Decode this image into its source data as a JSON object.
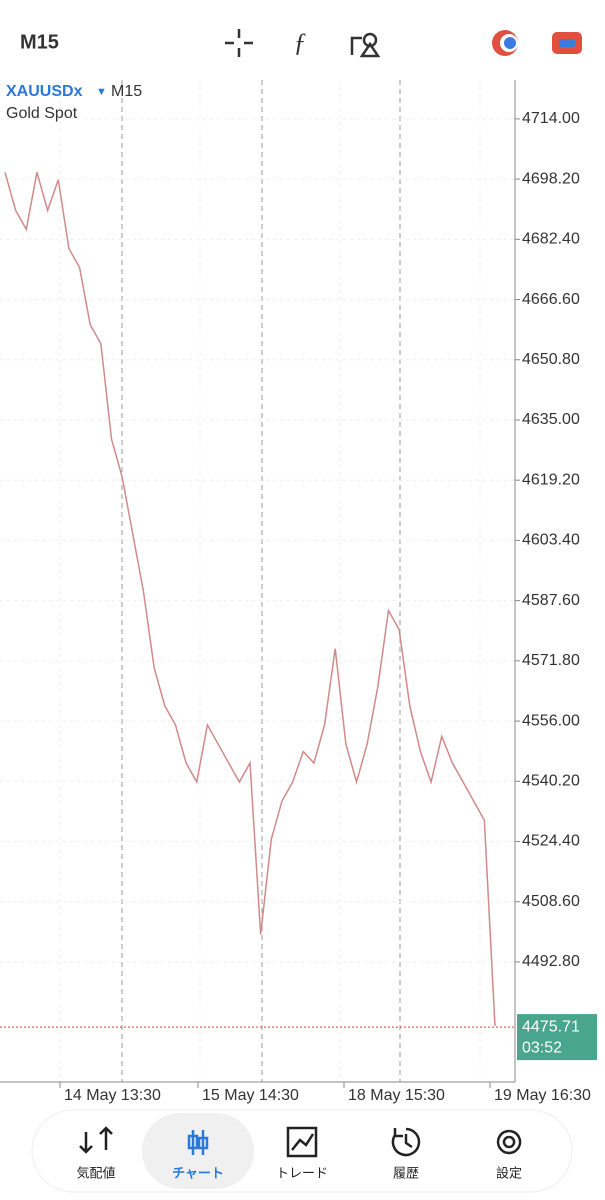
{
  "header": {
    "timeframe": "M15"
  },
  "chart_data": {
    "type": "line",
    "symbol": "XAUUSDx",
    "timeframe": "M15",
    "description": "Gold Spot",
    "values": [
      4700,
      4690,
      4685,
      4700,
      4690,
      4698,
      4680,
      4675,
      4660,
      4655,
      4630,
      4620,
      4605,
      4590,
      4570,
      4560,
      4555,
      4545,
      4540,
      4555,
      4550,
      4545,
      4540,
      4545,
      4500,
      4525,
      4535,
      4540,
      4548,
      4545,
      4555,
      4575,
      4550,
      4540,
      4550,
      4565,
      4585,
      4580,
      4560,
      4548,
      4540,
      4552,
      4545,
      4540,
      4535,
      4530,
      4476
    ],
    "color": "#d08a8a",
    "ylim": [
      4461.3,
      4724.2
    ],
    "yticks": [
      {
        "value": 4714,
        "label": "4714.00"
      },
      {
        "value": 4698.2,
        "label": "4698.20"
      },
      {
        "value": 4682.4,
        "label": "4682.40"
      },
      {
        "value": 4666.6,
        "label": "4666.60"
      },
      {
        "value": 4650.8,
        "label": "4650.80"
      },
      {
        "value": 4635,
        "label": "4635.00"
      },
      {
        "value": 4619.2,
        "label": "4619.20"
      },
      {
        "value": 4603.4,
        "label": "4603.40"
      },
      {
        "value": 4587.6,
        "label": "4587.60"
      },
      {
        "value": 4571.8,
        "label": "4571.80"
      },
      {
        "value": 4556,
        "label": "4556.00"
      },
      {
        "value": 4540.2,
        "label": "4540.20"
      },
      {
        "value": 4524.4,
        "label": "4524.40"
      },
      {
        "value": 4508.6,
        "label": "4508.60"
      },
      {
        "value": 4492.8,
        "label": "4492.80"
      }
    ],
    "x_labels": [
      "14 May 13:30",
      "15 May 14:30",
      "18 May 15:30",
      "19 May 16:30"
    ],
    "current_price": 4475.71,
    "timer": "03:52",
    "grid": true
  },
  "nav": {
    "items": [
      "気配値",
      "チャート",
      "トレード",
      "履歴",
      "設定"
    ],
    "active": 1
  }
}
